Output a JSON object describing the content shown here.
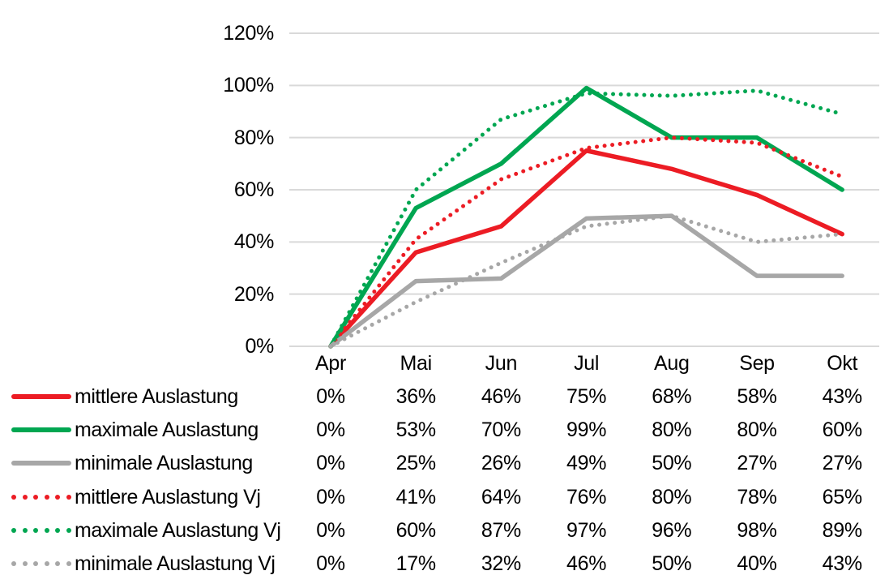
{
  "page": {
    "background_color": "#FFFFFF",
    "text_color": "#000000"
  },
  "chart_data": {
    "type": "line",
    "title": "",
    "xlabel": "",
    "ylabel": "",
    "x_categories": [
      "Apr",
      "Mai",
      "Jun",
      "Jul",
      "Aug",
      "Sep",
      "Okt"
    ],
    "ylim": [
      0,
      120
    ],
    "y_tick_step": 20,
    "y_tick_labels": [
      "0%",
      "20%",
      "40%",
      "60%",
      "80%",
      "100%",
      "120%"
    ],
    "grid": true,
    "grid_color": "#D9D9D9",
    "value_suffix": "%",
    "legend_position": "table-left-bottom",
    "series": [
      {
        "name": "mittlere Auslastung",
        "line_style": "solid",
        "color": "#EC1C24",
        "values": [
          0,
          36,
          46,
          75,
          68,
          58,
          43
        ]
      },
      {
        "name": "maximale Auslastung",
        "line_style": "solid",
        "color": "#00A651",
        "values": [
          0,
          53,
          70,
          99,
          80,
          80,
          60
        ]
      },
      {
        "name": "minimale Auslastung",
        "line_style": "solid",
        "color": "#A7A7A7",
        "values": [
          0,
          25,
          26,
          49,
          50,
          27,
          27
        ]
      },
      {
        "name": "mittlere Auslastung Vj",
        "line_style": "dotted",
        "color": "#EC1C24",
        "values": [
          0,
          41,
          64,
          76,
          80,
          78,
          65
        ]
      },
      {
        "name": "maximale Auslastung Vj",
        "line_style": "dotted",
        "color": "#00A651",
        "values": [
          0,
          60,
          87,
          97,
          96,
          98,
          89
        ]
      },
      {
        "name": "minimale Auslastung Vj",
        "line_style": "dotted",
        "color": "#A7A7A7",
        "values": [
          0,
          17,
          32,
          46,
          50,
          40,
          43
        ]
      }
    ]
  }
}
